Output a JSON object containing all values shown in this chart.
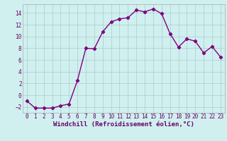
{
  "x": [
    0,
    1,
    2,
    3,
    4,
    5,
    6,
    7,
    8,
    9,
    10,
    11,
    12,
    13,
    14,
    15,
    16,
    17,
    18,
    19,
    20,
    21,
    22,
    23
  ],
  "y": [
    -1.0,
    -2.2,
    -2.2,
    -2.2,
    -1.8,
    -1.5,
    2.5,
    8.0,
    7.9,
    10.8,
    12.5,
    13.0,
    13.2,
    14.5,
    14.2,
    14.7,
    13.9,
    10.5,
    8.2,
    9.6,
    9.2,
    7.2,
    8.3,
    6.5
  ],
  "line_color": "#800080",
  "marker": "D",
  "marker_size": 2.2,
  "bg_color": "#d0f0f0",
  "grid_color": "#aacccc",
  "xlabel": "Windchill (Refroidissement éolien,°C)",
  "xlim": [
    -0.5,
    23.5
  ],
  "ylim": [
    -3.0,
    15.5
  ],
  "yticks": [
    -2,
    0,
    2,
    4,
    6,
    8,
    10,
    12,
    14
  ],
  "xticks": [
    0,
    1,
    2,
    3,
    4,
    5,
    6,
    7,
    8,
    9,
    10,
    11,
    12,
    13,
    14,
    15,
    16,
    17,
    18,
    19,
    20,
    21,
    22,
    23
  ],
  "tick_label_fontsize": 5.5,
  "xlabel_fontsize": 6.5,
  "line_width": 1.0
}
